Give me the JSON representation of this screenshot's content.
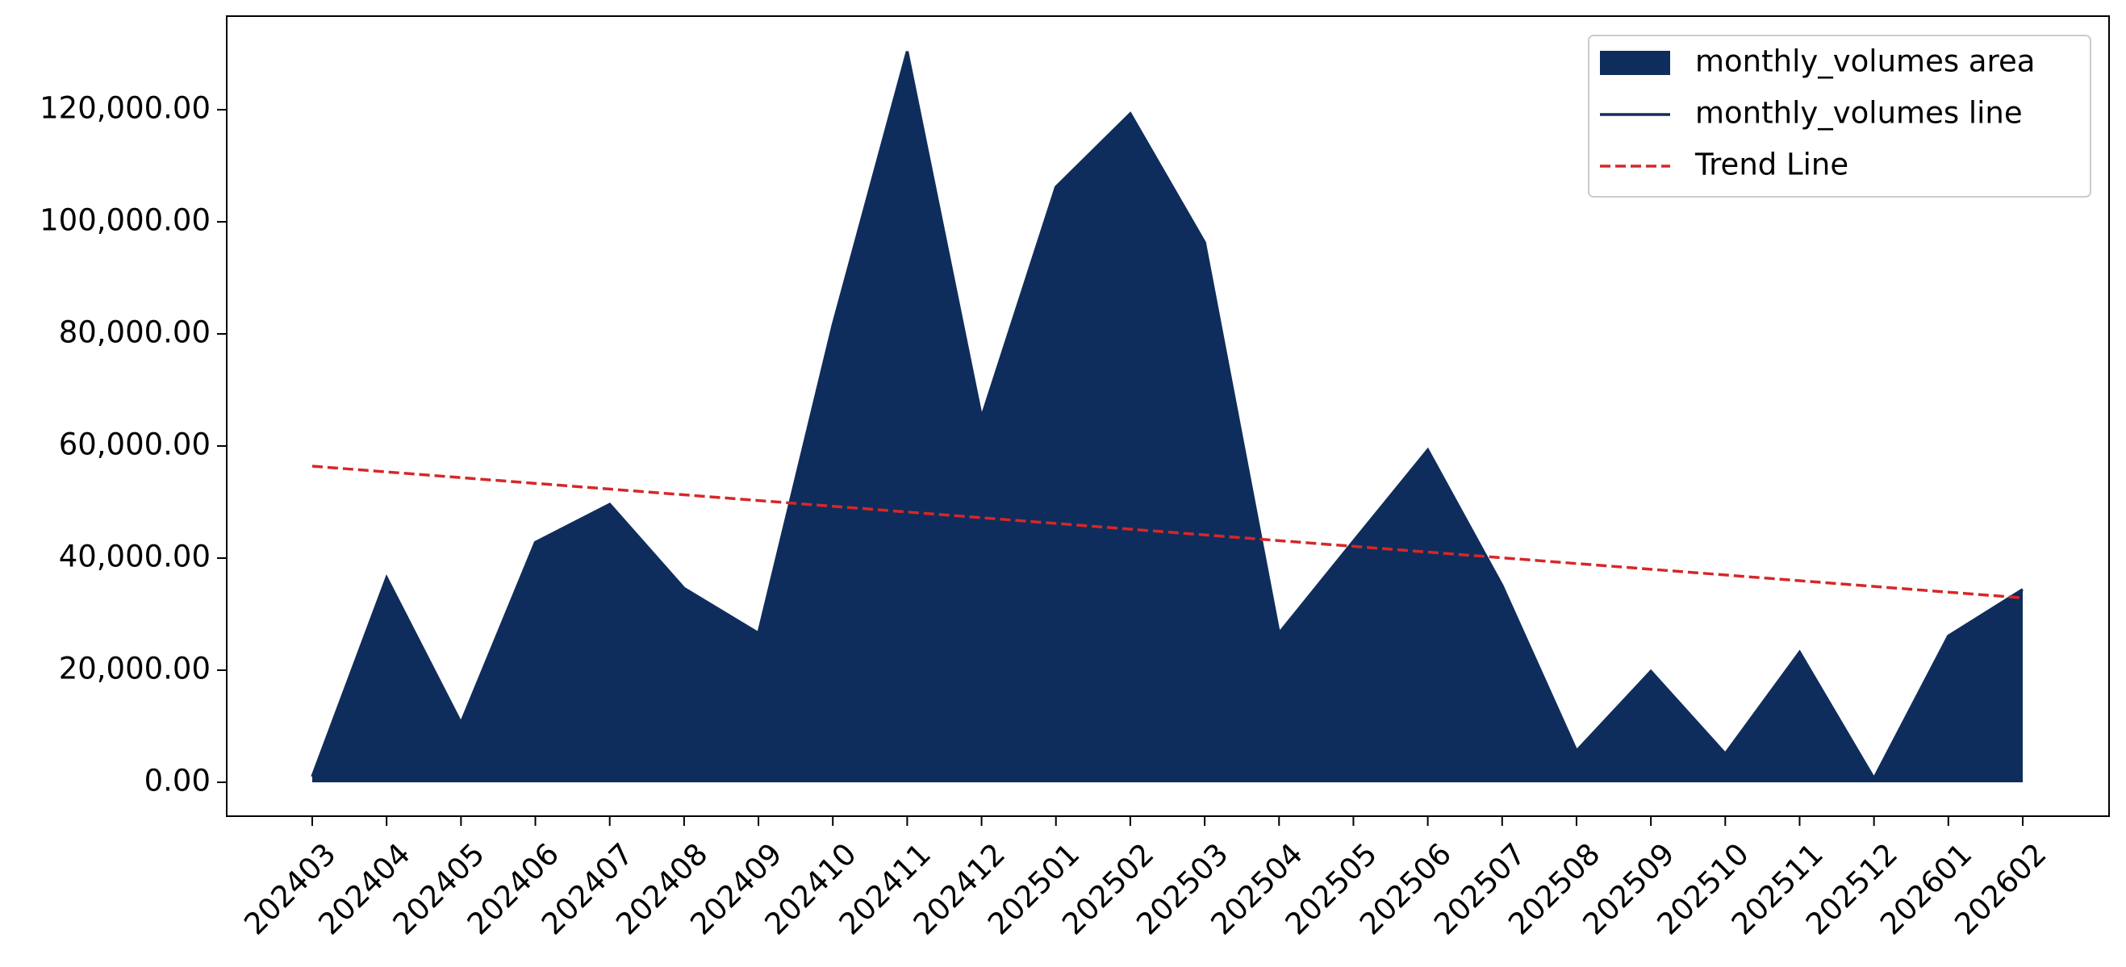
{
  "chart_data": {
    "type": "area",
    "categories": [
      "202403",
      "202404",
      "202405",
      "202406",
      "202407",
      "202408",
      "202409",
      "202410",
      "202411",
      "202412",
      "202501",
      "202502",
      "202503",
      "202504",
      "202505",
      "202506",
      "202507",
      "202508",
      "202509",
      "202510",
      "202511",
      "202512",
      "202601",
      "202602"
    ],
    "series": [
      {
        "name": "monthly_volumes area",
        "color": "#0f2d5c",
        "kind": "area",
        "values": [
          1000,
          36500,
          10600,
          42800,
          49600,
          34600,
          26600,
          81500,
          130400,
          65100,
          106200,
          119300,
          96300,
          26600,
          43000,
          59300,
          35100,
          5600,
          19800,
          5100,
          23200,
          700,
          26100,
          34400
        ]
      },
      {
        "name": "monthly_volumes line",
        "color": "#0f2d5c",
        "kind": "line",
        "values": [
          1000,
          36500,
          10600,
          42800,
          49600,
          34600,
          26600,
          81500,
          130400,
          65100,
          106200,
          119300,
          96300,
          26600,
          43000,
          59300,
          35100,
          5600,
          19800,
          5100,
          23200,
          700,
          26100,
          34400
        ]
      },
      {
        "name": "Trend Line",
        "color": "#d62728",
        "kind": "dashed",
        "values": [
          56400,
          55378,
          54357,
          53335,
          52313,
          51291,
          50270,
          49248,
          48226,
          47204,
          46183,
          45161,
          44139,
          43117,
          42096,
          41074,
          40052,
          39030,
          38009,
          36987,
          35965,
          34943,
          33922,
          32900
        ]
      }
    ],
    "ylim": [
      -6050,
      136700
    ],
    "yticks": [
      {
        "value": 0,
        "label": "0.00"
      },
      {
        "value": 20000,
        "label": "20,000.00"
      },
      {
        "value": 40000,
        "label": "40,000.00"
      },
      {
        "value": 60000,
        "label": "60,000.00"
      },
      {
        "value": 80000,
        "label": "80,000.00"
      },
      {
        "value": 100000,
        "label": "100,000.00"
      },
      {
        "value": 120000,
        "label": "120,000.00"
      }
    ],
    "legend": "upper right",
    "grid": false
  }
}
